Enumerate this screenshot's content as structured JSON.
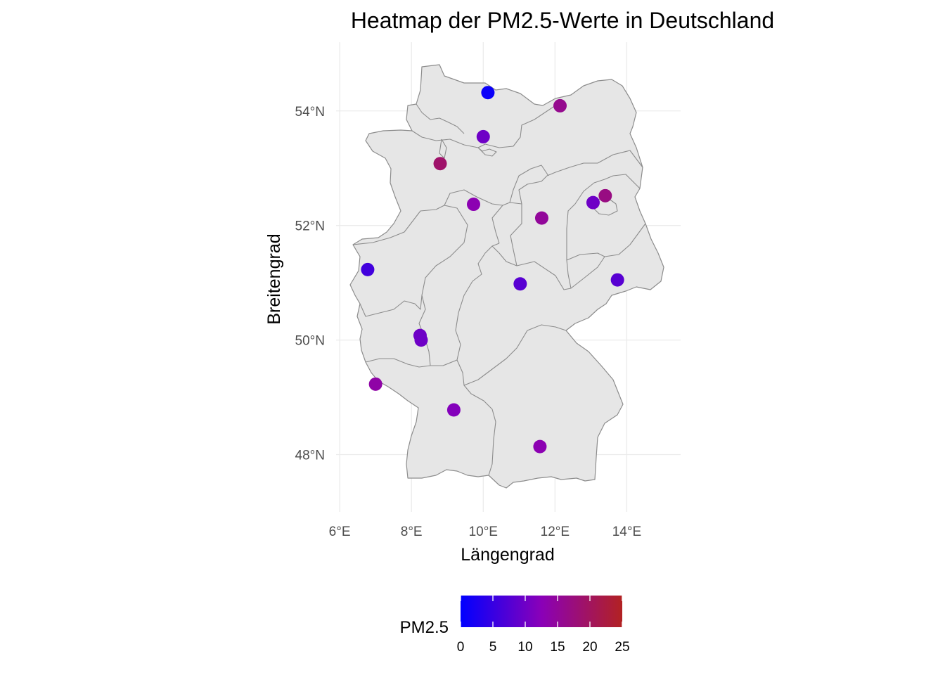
{
  "chart_data": {
    "type": "scatter",
    "title": "Heatmap der PM2.5-Werte in Deutschland",
    "xlabel": "Längengrad",
    "ylabel": "Breitengrad",
    "xlim": [
      5.9,
      15.5
    ],
    "ylim": [
      47.0,
      55.2
    ],
    "x_ticks": [
      {
        "value": 6,
        "label": "6°E"
      },
      {
        "value": 8,
        "label": "8°E"
      },
      {
        "value": 10,
        "label": "10°E"
      },
      {
        "value": 12,
        "label": "12°E"
      },
      {
        "value": 14,
        "label": "14°E"
      }
    ],
    "y_ticks": [
      {
        "value": 48,
        "label": "48°N"
      },
      {
        "value": 50,
        "label": "50°N"
      },
      {
        "value": 52,
        "label": "52°N"
      },
      {
        "value": 54,
        "label": "54°N"
      }
    ],
    "grid": true,
    "points": [
      {
        "lon": 10.13,
        "lat": 54.32,
        "pm25": 1
      },
      {
        "lon": 12.14,
        "lat": 54.09,
        "pm25": 16
      },
      {
        "lon": 10.0,
        "lat": 53.55,
        "pm25": 10
      },
      {
        "lon": 8.8,
        "lat": 53.08,
        "pm25": 19
      },
      {
        "lon": 9.73,
        "lat": 52.37,
        "pm25": 13
      },
      {
        "lon": 11.63,
        "lat": 52.13,
        "pm25": 15
      },
      {
        "lon": 13.06,
        "lat": 52.4,
        "pm25": 10
      },
      {
        "lon": 13.4,
        "lat": 52.52,
        "pm25": 17
      },
      {
        "lon": 6.78,
        "lat": 51.23,
        "pm25": 6
      },
      {
        "lon": 11.03,
        "lat": 50.98,
        "pm25": 8
      },
      {
        "lon": 13.74,
        "lat": 51.05,
        "pm25": 8
      },
      {
        "lon": 8.24,
        "lat": 50.08,
        "pm25": 10
      },
      {
        "lon": 8.27,
        "lat": 50.0,
        "pm25": 10
      },
      {
        "lon": 7.0,
        "lat": 49.23,
        "pm25": 14
      },
      {
        "lon": 9.18,
        "lat": 48.78,
        "pm25": 12
      },
      {
        "lon": 11.58,
        "lat": 48.14,
        "pm25": 13
      }
    ]
  },
  "legend": {
    "title": "PM2.5",
    "min": 0,
    "max": 25,
    "ticks": [
      "0",
      "5",
      "10",
      "15",
      "20",
      "25"
    ],
    "color_low": "#0000ff",
    "color_mid": "#8a00b8",
    "color_high": "#b22222"
  },
  "map": {
    "fill": "#e6e6e6",
    "stroke": "#8c8c8c",
    "grid_color": "#ebebeb"
  }
}
